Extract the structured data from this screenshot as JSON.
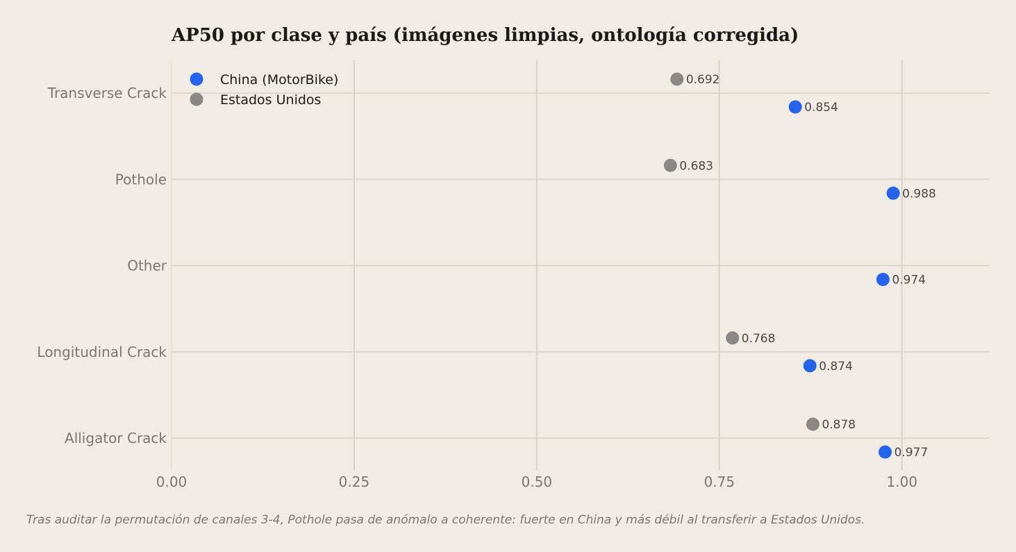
{
  "chart_data": {
    "type": "scatter",
    "title": "AP50 por clase y país (imágenes limpias, ontología corregida)",
    "caption": "Tras auditar la permutación de canales 3-4, Pothole pasa de anómalo a coherente: fuerte en China y más débil al transferir a Estados Unidos.",
    "categories": [
      "Transverse Crack",
      "Pothole",
      "Other",
      "Longitudinal Crack",
      "Alligator Crack"
    ],
    "x_ticks": [
      "0.00",
      "0.25",
      "0.50",
      "0.75",
      "1.00"
    ],
    "x_tick_values": [
      0,
      0.25,
      0.5,
      0.75,
      1.0
    ],
    "xlim": [
      0,
      1.12
    ],
    "grid": true,
    "legend_position": "top-left",
    "series": [
      {
        "name": "China (MotorBike)",
        "color": "#2563eb",
        "values": [
          0.854,
          0.988,
          0.974,
          0.874,
          0.977
        ],
        "labels": [
          "0.854",
          "0.988",
          "0.974",
          "0.874",
          "0.977"
        ]
      },
      {
        "name": "Estados Unidos",
        "color": "#8a8886",
        "values": [
          0.692,
          0.683,
          null,
          0.768,
          0.878
        ],
        "labels": [
          "0.692",
          "0.683",
          "",
          "0.768",
          "0.878"
        ]
      }
    ]
  }
}
